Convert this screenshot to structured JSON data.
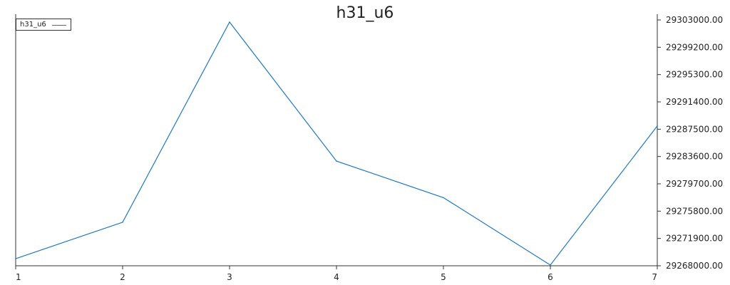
{
  "chart_data": {
    "type": "line",
    "title": "h31_u6",
    "xlabel": "",
    "ylabel": "",
    "x": [
      1,
      2,
      3,
      4,
      5,
      6,
      7
    ],
    "series": [
      {
        "name": "h31_u6",
        "color": "#1f77c4",
        "values": [
          29269000,
          29274200,
          29302700,
          29282900,
          29277700,
          29268100,
          29287900
        ]
      }
    ],
    "xticks": [
      "1",
      "2",
      "3",
      "4",
      "5",
      "6",
      "7"
    ],
    "yticks": [
      "29268000.00",
      "29271900.00",
      "29275800.00",
      "29279700.00",
      "29283600.00",
      "29287500.00",
      "29291400.00",
      "29295300.00",
      "29299200.00",
      "29303000.00"
    ],
    "xlim": [
      1,
      7
    ],
    "ylim": [
      29268000,
      29303000
    ],
    "y_axis_side": "right",
    "legend_position": "top-left",
    "grid": false
  }
}
